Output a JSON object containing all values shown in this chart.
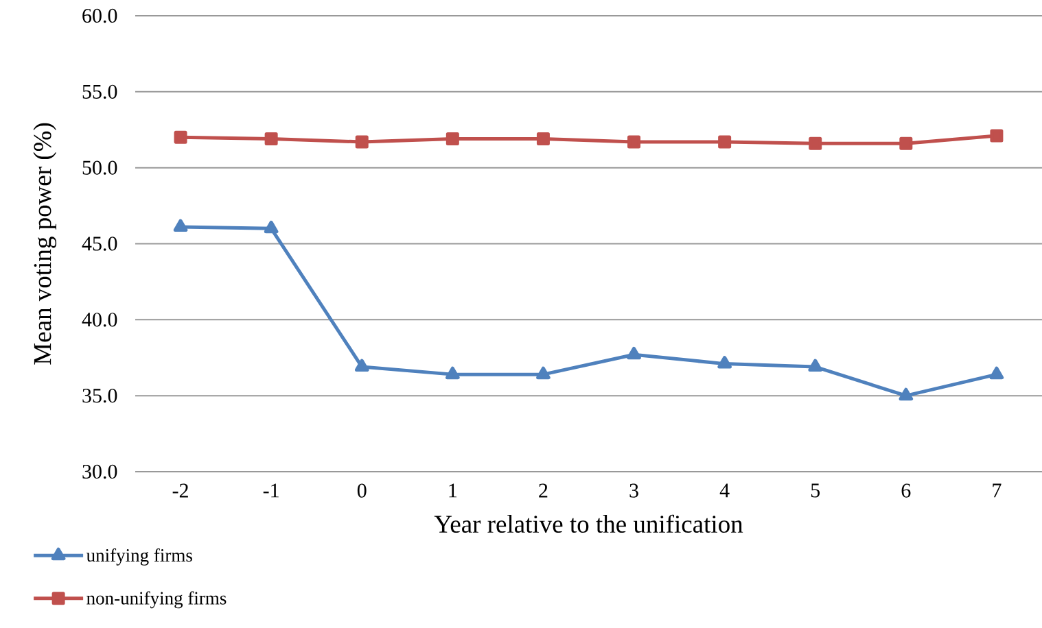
{
  "chart_data": {
    "type": "line",
    "xlabel": "Year relative to the unification",
    "ylabel": "Mean voting power (%)",
    "categories": [
      "-2",
      "-1",
      "0",
      "1",
      "2",
      "3",
      "4",
      "5",
      "6",
      "7"
    ],
    "series": [
      {
        "name": "unifying firms",
        "color": "#4f81bd",
        "marker": "triangle",
        "values": [
          46.1,
          46.0,
          36.9,
          36.4,
          36.4,
          37.7,
          37.1,
          36.9,
          35.0,
          36.4
        ]
      },
      {
        "name": "non-unifying firms",
        "color": "#c0504d",
        "marker": "square",
        "values": [
          52.0,
          51.9,
          51.7,
          51.9,
          51.9,
          51.7,
          51.7,
          51.6,
          51.6,
          52.1
        ]
      }
    ],
    "ylim": [
      30,
      60
    ],
    "yticks": [
      {
        "value": 30,
        "label": "30.0"
      },
      {
        "value": 35,
        "label": "35.0"
      },
      {
        "value": 40,
        "label": "40.0"
      },
      {
        "value": 45,
        "label": "45.0"
      },
      {
        "value": 50,
        "label": "50.0"
      },
      {
        "value": 55,
        "label": "55.0"
      },
      {
        "value": 60,
        "label": "60.0"
      }
    ],
    "grid": "y",
    "legend": "bottom left",
    "line_style": "solid"
  }
}
